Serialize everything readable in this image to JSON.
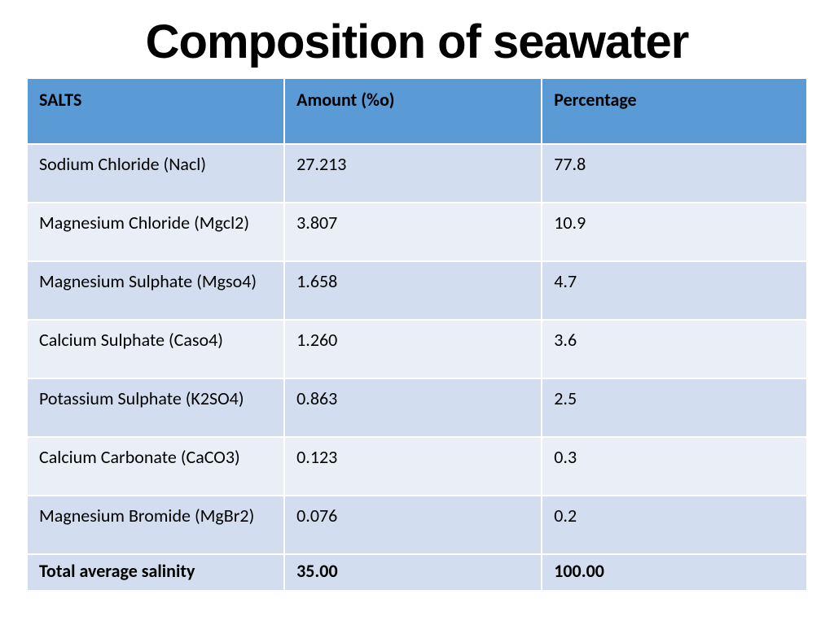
{
  "title": "Composition of seawater",
  "table": {
    "type": "table",
    "header_bg": "#5b9bd5",
    "row_bg_odd": "#d2deef",
    "row_bg_even": "#eaeff7",
    "text_color": "#000000",
    "border_color": "#ffffff",
    "title_fontsize": 58,
    "header_fontsize": 22,
    "cell_fontsize": 22,
    "columns": [
      {
        "label": "SALTS"
      },
      {
        "label": "Amount (%o)"
      },
      {
        "label": "Percentage"
      }
    ],
    "rows": [
      {
        "salt": "Sodium Chloride (Nacl)",
        "amount": "27.213",
        "pct": "77.8"
      },
      {
        "salt": "Magnesium Chloride (Mgcl2)",
        "amount": "3.807",
        "pct": "10.9"
      },
      {
        "salt": "Magnesium Sulphate (Mgso4)",
        "amount": "1.658",
        "pct": "4.7"
      },
      {
        "salt": "Calcium Sulphate (Caso4)",
        "amount": "1.260",
        "pct": "3.6"
      },
      {
        "salt": "Potassium Sulphate (K2SO4)",
        "amount": "0.863",
        "pct": "2.5"
      },
      {
        "salt": "Calcium Carbonate (CaCO3)",
        "amount": "0.123",
        "pct": "0.3"
      },
      {
        "salt": "Magnesium Bromide (MgBr2)",
        "amount": "0.076",
        "pct": "0.2"
      }
    ],
    "total": {
      "label": "Total average salinity",
      "amount": "35.00",
      "pct": "100.00"
    }
  }
}
